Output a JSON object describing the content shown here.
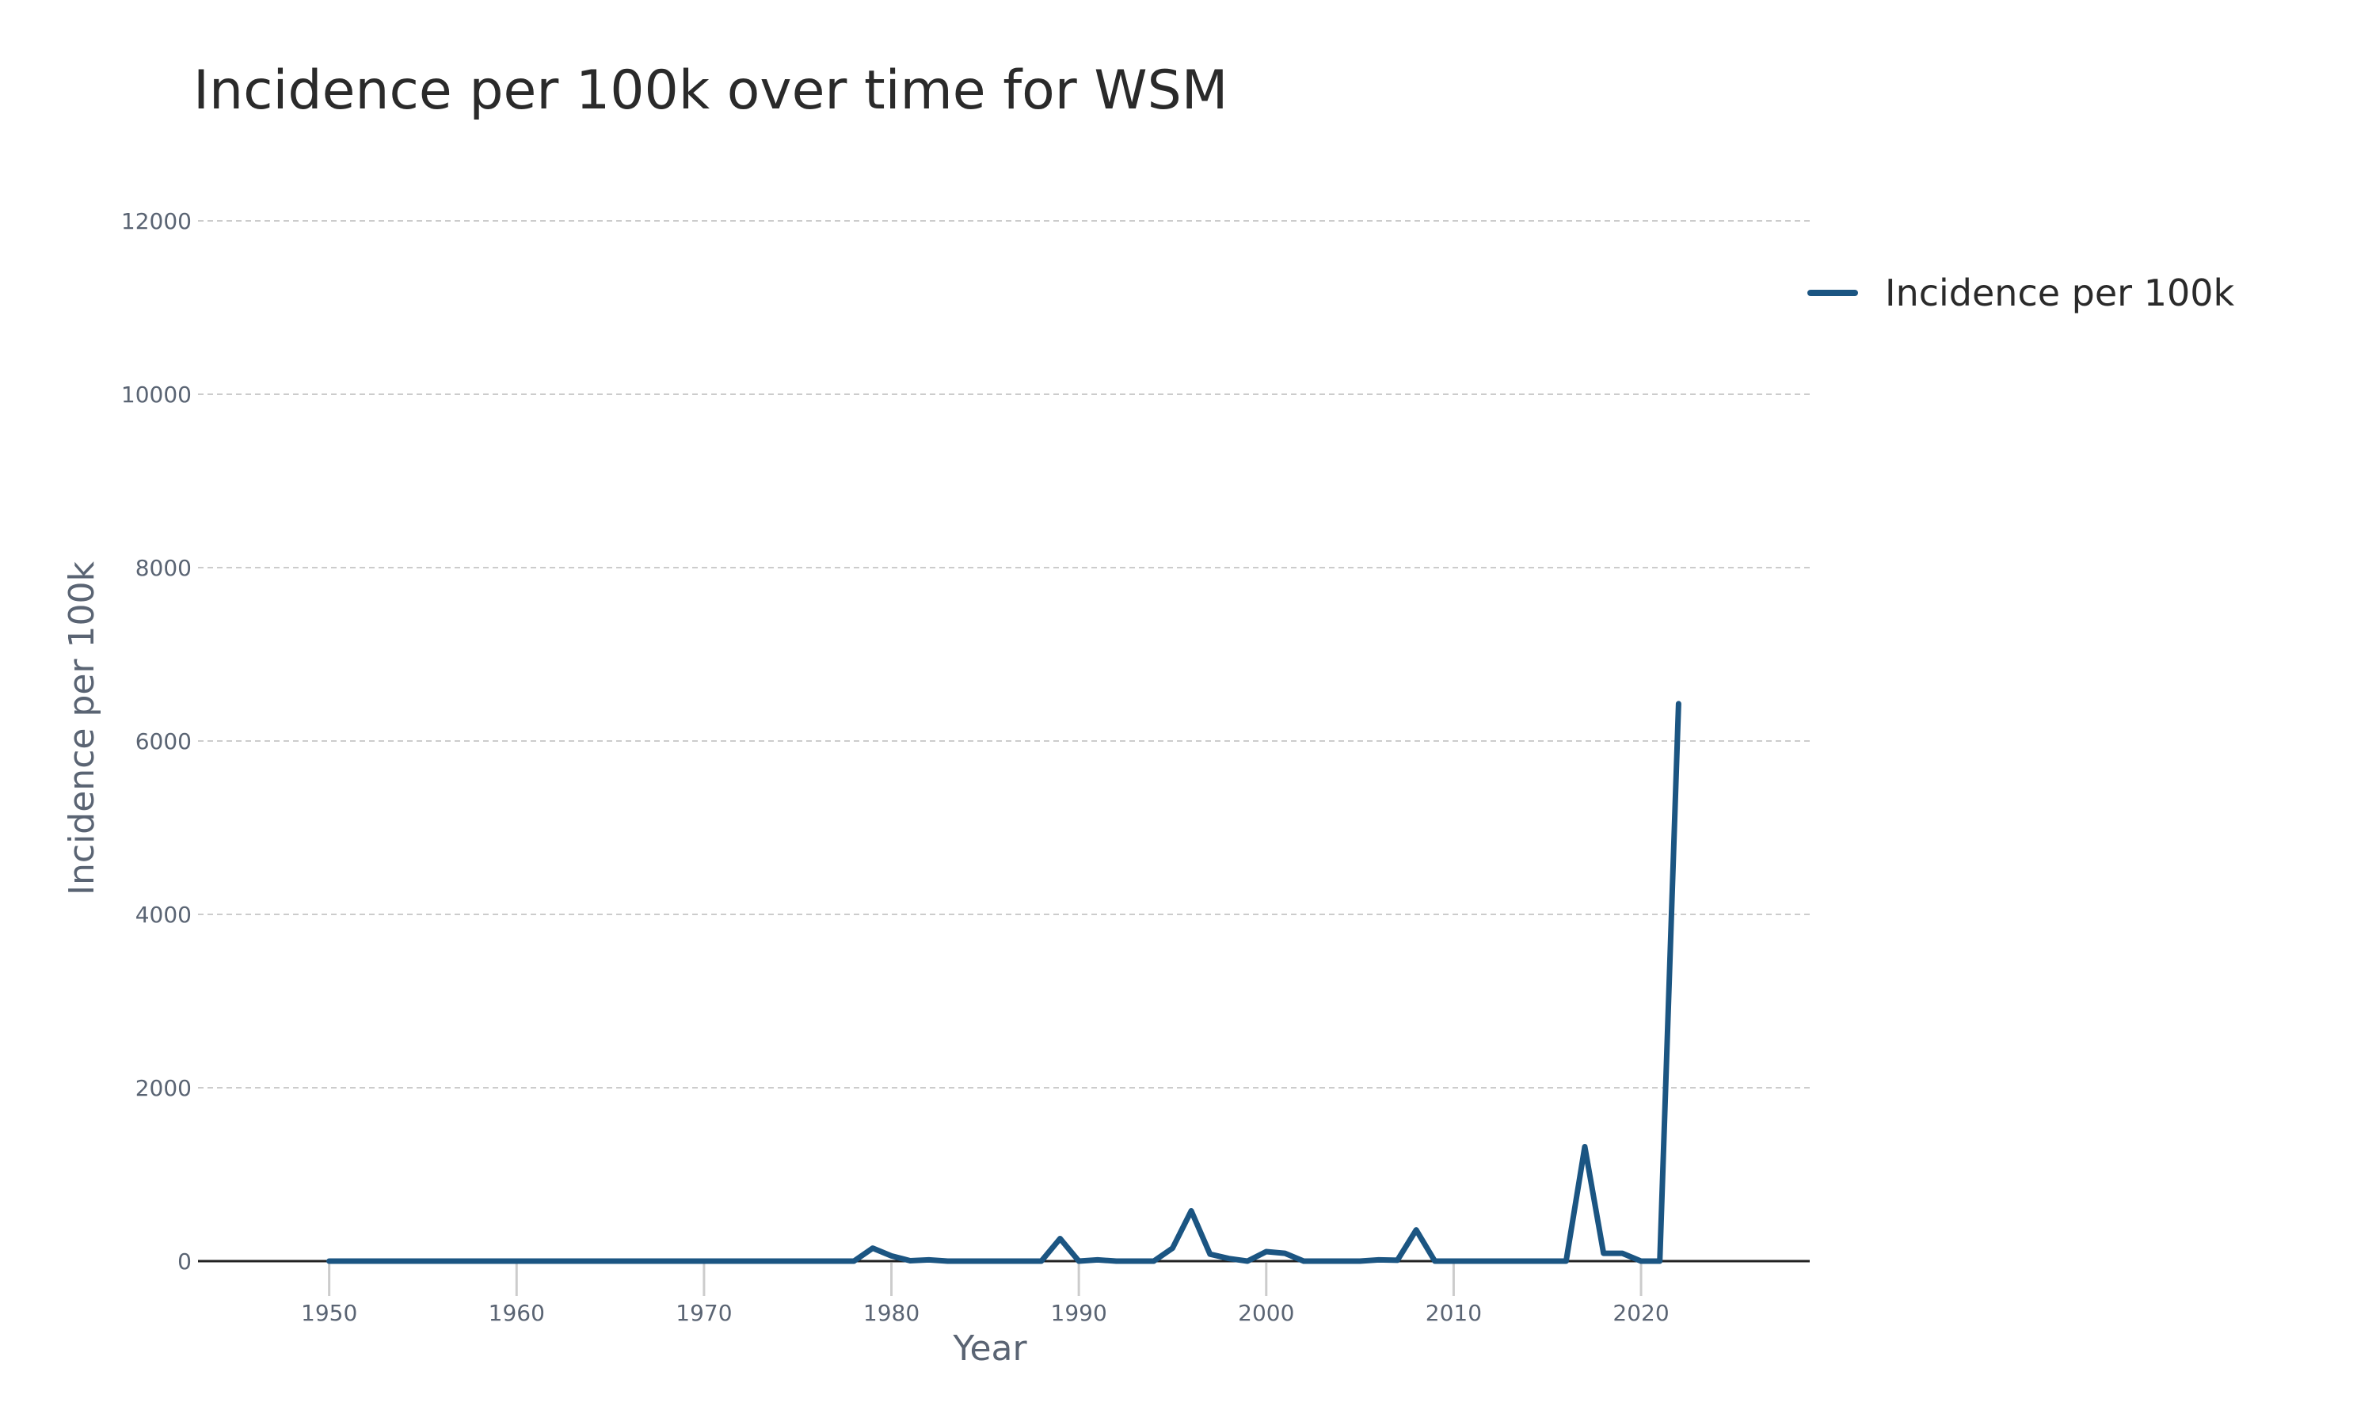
{
  "chart_data": {
    "type": "line",
    "title": "Incidence per 100k over time for WSM",
    "xlabel": "Year",
    "ylabel": "Incidence per 100k",
    "xlim": [
      1943,
      2029
    ],
    "ylim": [
      0,
      12000
    ],
    "x_ticks": [
      1950,
      1960,
      1970,
      1980,
      1990,
      2000,
      2010,
      2020
    ],
    "y_ticks": [
      0,
      2000,
      4000,
      6000,
      8000,
      10000,
      12000
    ],
    "grid": "horizontal",
    "legend_position": "top-right",
    "series": [
      {
        "name": "Incidence per 100k",
        "color": "#1b5582",
        "x": [
          1950,
          1951,
          1952,
          1953,
          1954,
          1955,
          1956,
          1957,
          1958,
          1959,
          1960,
          1961,
          1962,
          1963,
          1964,
          1965,
          1966,
          1967,
          1968,
          1969,
          1970,
          1971,
          1972,
          1973,
          1974,
          1975,
          1976,
          1977,
          1978,
          1979,
          1980,
          1981,
          1982,
          1983,
          1984,
          1985,
          1986,
          1987,
          1988,
          1989,
          1990,
          1991,
          1992,
          1993,
          1994,
          1995,
          1996,
          1997,
          1998,
          1999,
          2000,
          2001,
          2002,
          2003,
          2004,
          2005,
          2006,
          2007,
          2008,
          2009,
          2010,
          2011,
          2012,
          2013,
          2014,
          2015,
          2016,
          2017,
          2018,
          2019,
          2020,
          2021,
          2022
        ],
        "y": [
          0,
          0,
          0,
          0,
          0,
          0,
          0,
          0,
          0,
          0,
          0,
          0,
          0,
          0,
          0,
          0,
          0,
          0,
          0,
          0,
          0,
          0,
          0,
          0,
          0,
          0,
          0,
          0,
          0,
          150,
          60,
          5,
          15,
          0,
          0,
          0,
          0,
          0,
          0,
          260,
          0,
          15,
          0,
          0,
          0,
          150,
          580,
          80,
          30,
          0,
          110,
          90,
          0,
          0,
          0,
          0,
          15,
          10,
          360,
          0,
          0,
          0,
          0,
          0,
          0,
          0,
          0,
          1320,
          90,
          90,
          0,
          0,
          6430
        ]
      }
    ]
  }
}
